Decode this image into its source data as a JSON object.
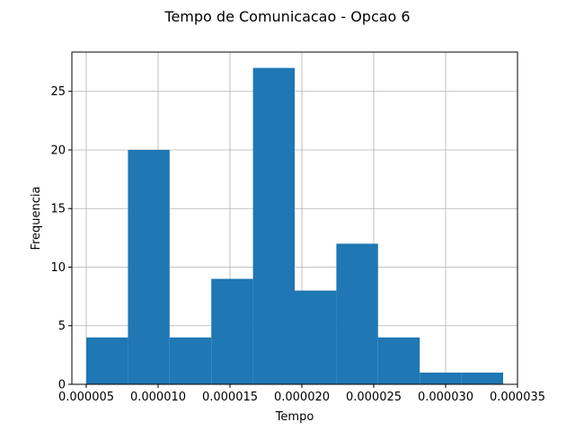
{
  "chart_data": {
    "type": "bar",
    "title": "Tempo de Comunicacao - Opcao 6",
    "xlabel": "Tempo",
    "ylabel": "Frequencia",
    "xlim": [
      4e-06,
      3.5e-05
    ],
    "ylim": [
      0,
      28.35
    ],
    "grid": true,
    "bin_edges": [
      5e-06,
      7.9e-06,
      1.08e-05,
      1.37e-05,
      1.66e-05,
      1.95e-05,
      2.24e-05,
      2.53e-05,
      2.82e-05,
      3.11e-05,
      3.4e-05
    ],
    "values": [
      4,
      20,
      4,
      9,
      27,
      8,
      12,
      4,
      1,
      1
    ],
    "x_ticks": [
      5e-06,
      1e-05,
      1.5e-05,
      2e-05,
      2.5e-05,
      3e-05,
      3.5e-05
    ],
    "x_tick_labels": [
      "0.000005",
      "0.000010",
      "0.000015",
      "0.000020",
      "0.000025",
      "0.000030",
      "0.000035"
    ],
    "y_ticks": [
      0,
      5,
      10,
      15,
      20,
      25
    ],
    "y_tick_labels": [
      "0",
      "5",
      "10",
      "15",
      "20",
      "25"
    ],
    "bar_color": "#1f77b4",
    "grid_color": "#b0b0b0"
  }
}
